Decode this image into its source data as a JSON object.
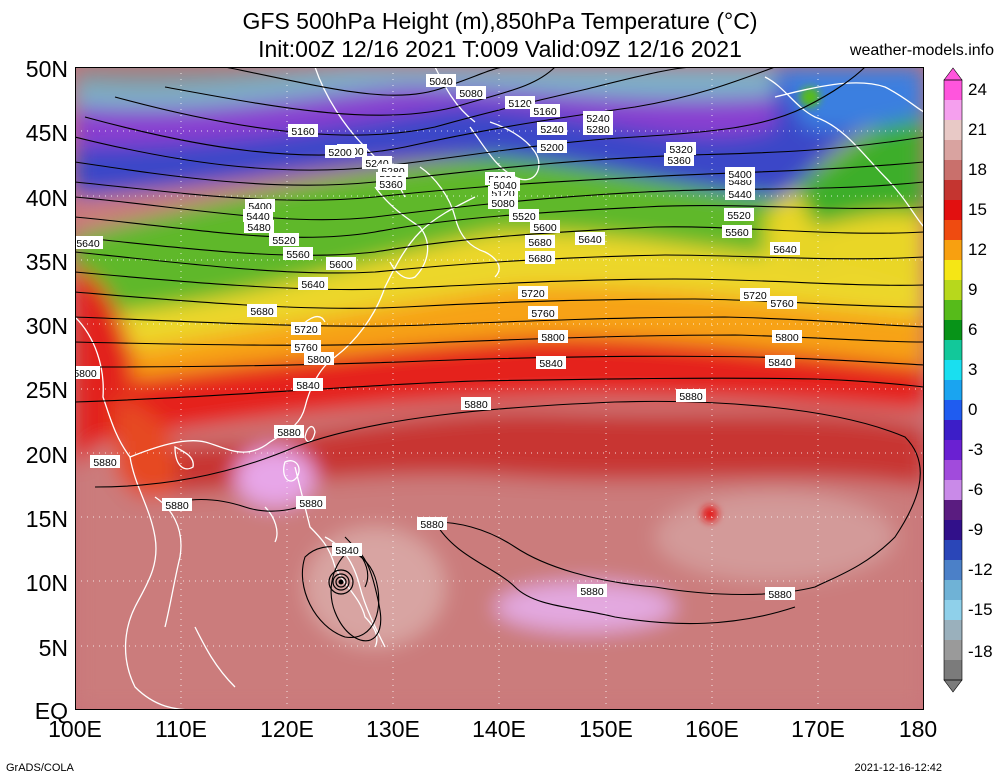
{
  "title_line1": "GFS 500hPa Height (m),850hPa Temperature (°C)",
  "title_line2": "Init:00Z 12/16 2021 T:009 Valid:09Z 12/16 2021",
  "credit": "weather-models.info",
  "footer_left": "GrADS/COLA",
  "footer_right": "2021-12-16-12:42",
  "lat_labels": [
    "50N",
    "45N",
    "40N",
    "35N",
    "30N",
    "25N",
    "20N",
    "15N",
    "10N",
    "5N",
    "EQ"
  ],
  "lon_labels": [
    "100E",
    "110E",
    "120E",
    "130E",
    "140E",
    "150E",
    "160E",
    "170E",
    "180"
  ],
  "colorbar": {
    "labels": [
      "24",
      "21",
      "18",
      "15",
      "12",
      "9",
      "6",
      "3",
      "0",
      "-3",
      "-6",
      "-9",
      "-12",
      "-15",
      "-18"
    ],
    "colors": [
      "#ff55dd",
      "#f5a0ee",
      "#e8c9c6",
      "#d9a3a0",
      "#c9706c",
      "#c43530",
      "#e21010",
      "#ef4b10",
      "#f8a010",
      "#f5e615",
      "#b7d81c",
      "#56bb1a",
      "#079318",
      "#12c89a",
      "#19dff0",
      "#1aa4f0",
      "#1f5cf0",
      "#3c1ec8",
      "#6a20d2",
      "#a14bdc",
      "#c98ae8",
      "#5a1c80",
      "#31108a",
      "#2a46b8",
      "#4b80c8",
      "#6fb2d6",
      "#8fd0ea",
      "#9ab0bc",
      "#9a9a9a",
      "#7b7b7b"
    ]
  },
  "height_contour_labels": [
    "5040",
    "5080",
    "5120",
    "5160",
    "5200",
    "5240",
    "5280",
    "5320",
    "5360",
    "5400",
    "5440",
    "5480",
    "5520",
    "5560",
    "5600",
    "5640",
    "5680",
    "5720",
    "5760",
    "5800",
    "5840",
    "5880"
  ]
}
